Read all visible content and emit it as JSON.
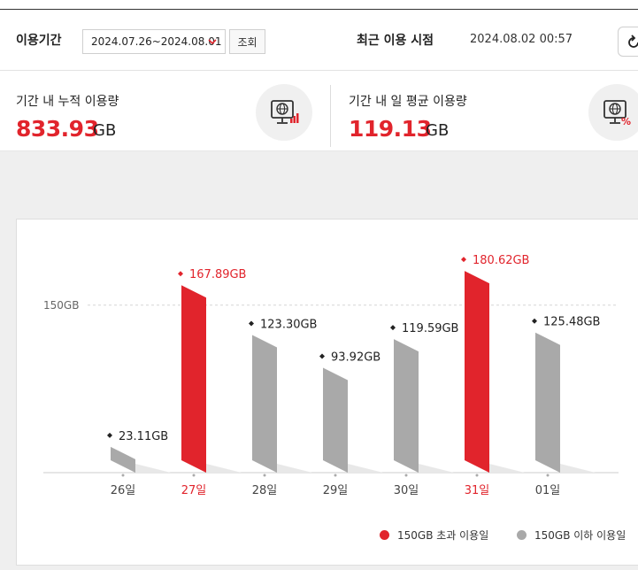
{
  "period": {
    "label": "이용기간",
    "date_range": "2024.07.26~2024.08.01",
    "query_button": "조회",
    "recent_label": "최근 이용 시점",
    "recent_value": "2024.08.02 00:57"
  },
  "stats": {
    "total_label": "기간 내 누적 이용량",
    "total_value": "833.93",
    "total_unit": "GB",
    "avg_label": "기간 내 일 평균 이용량",
    "avg_value": "119.13",
    "avg_unit": "GB"
  },
  "colors": {
    "accent_red": "#e1242c",
    "bar_gray": "#a9a9a9"
  },
  "chart_data": {
    "type": "bar",
    "categories": [
      "26일",
      "27일",
      "28일",
      "29일",
      "30일",
      "31일",
      "01일"
    ],
    "values": [
      23.11,
      167.89,
      123.3,
      93.92,
      119.59,
      180.62,
      125.48
    ],
    "value_labels": [
      "23.11GB",
      "167.89GB",
      "123.30GB",
      "93.92GB",
      "119.59GB",
      "180.62GB",
      "125.48GB"
    ],
    "threshold": 150,
    "threshold_label": "150GB",
    "ylim": [
      0,
      195
    ],
    "legend": {
      "over": "150GB 초과 이용일",
      "under": "150GB 이하 이용일",
      "placement": "bottom-right"
    }
  }
}
